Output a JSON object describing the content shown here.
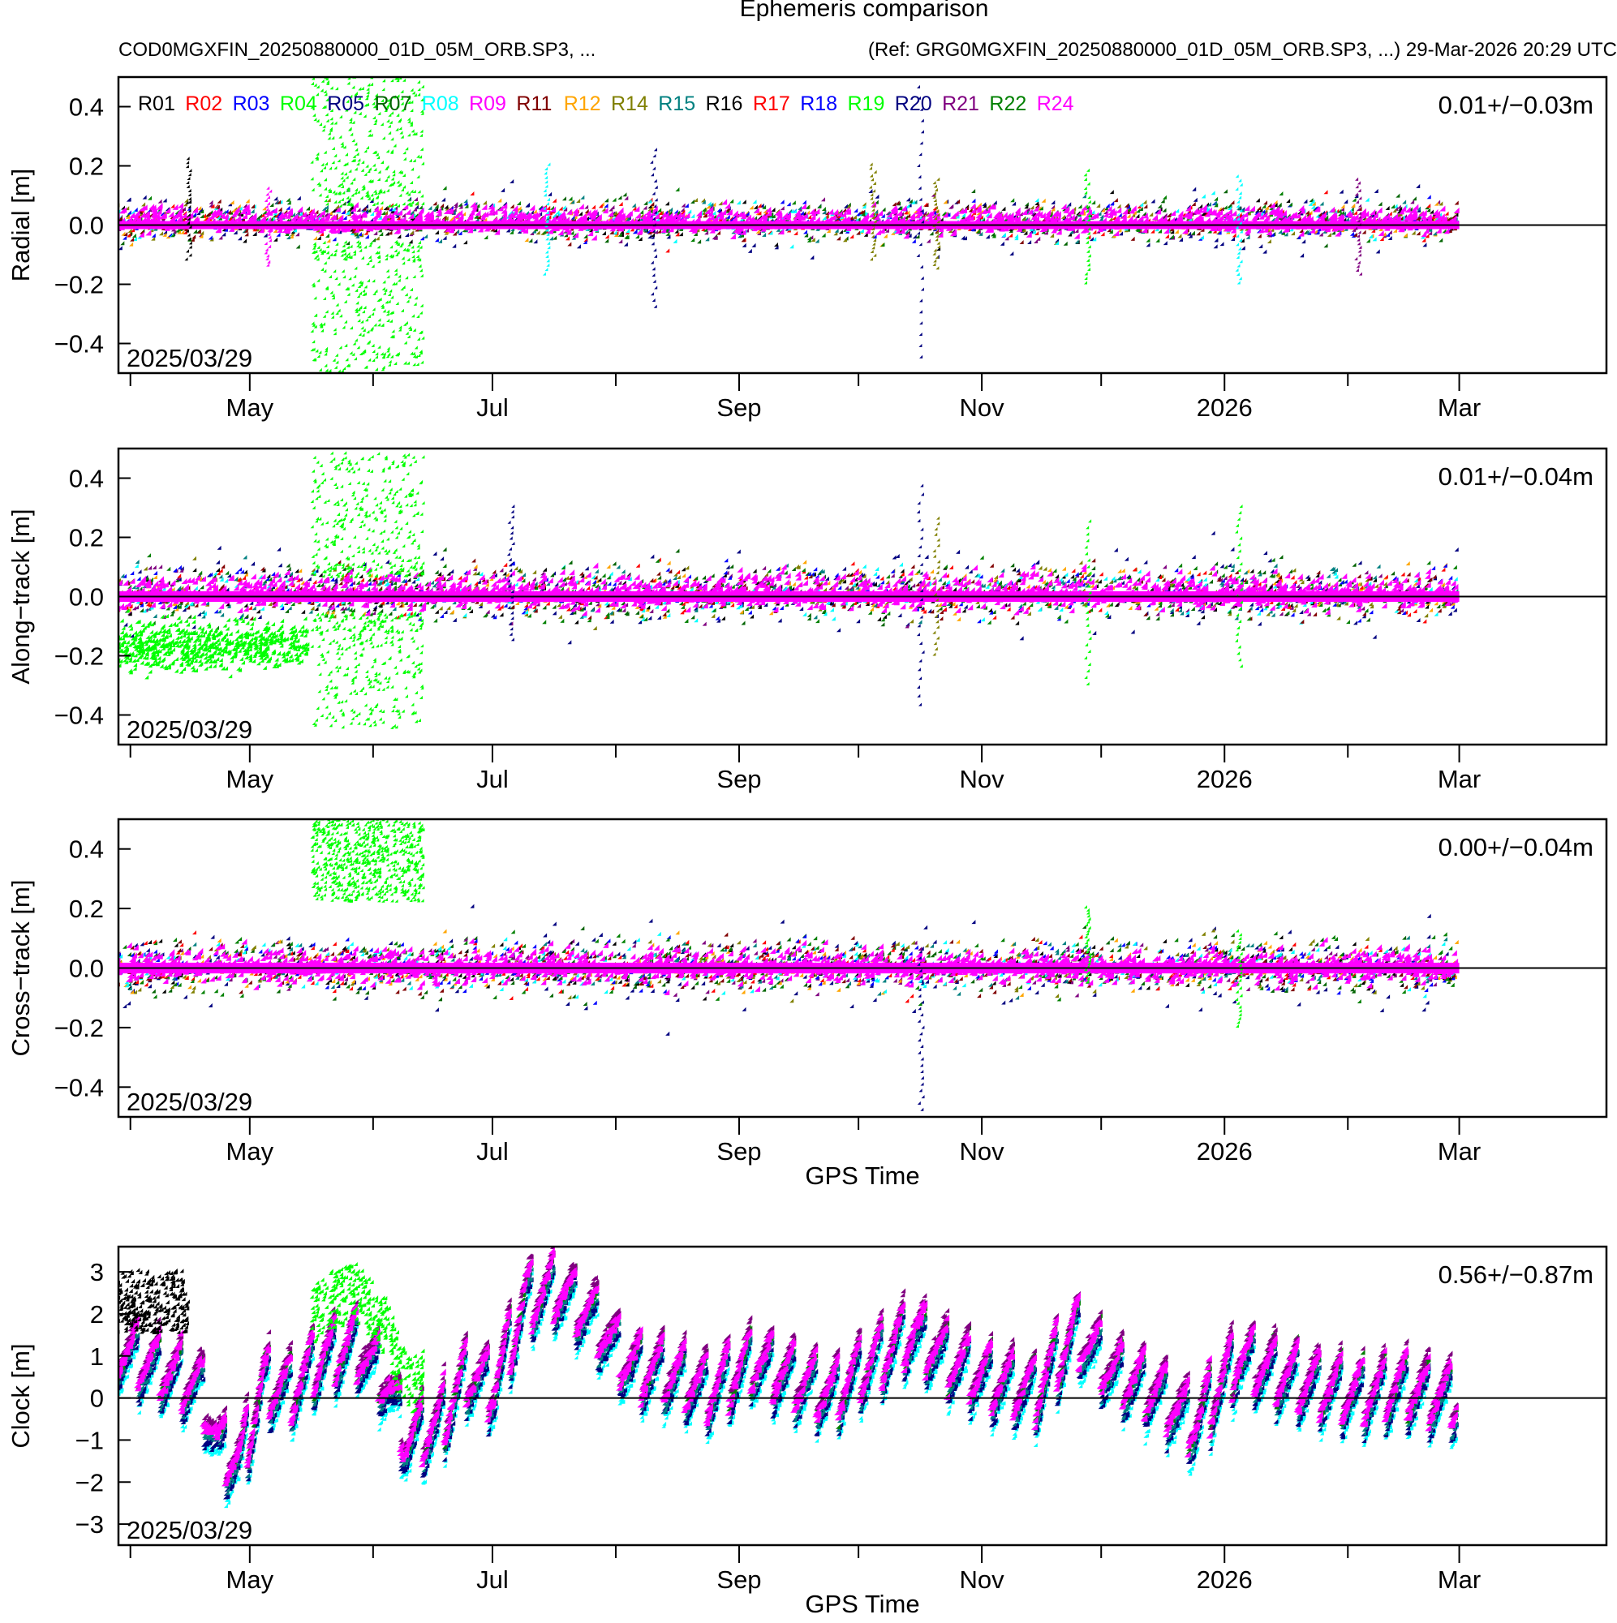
{
  "header": {
    "title": "Ephemeris comparison",
    "left": "COD0MGXFIN_20250880000_01D_05M_ORB.SP3, ...",
    "right": "(Ref: GRG0MGXFIN_20250880000_01D_05M_ORB.SP3, ...) 29-Mar-2026 20:29 UTC"
  },
  "chart_data": [
    {
      "type": "scatter",
      "panel": "radial",
      "ylabel": "Radial [m]",
      "xlabel": "",
      "ylim": [
        -0.5,
        0.5
      ],
      "yticks": [
        "0.4",
        "0.2",
        "0.0",
        "−0.2",
        "−0.4"
      ],
      "ytick_values": [
        0.4,
        0.2,
        0.0,
        -0.2,
        -0.4
      ],
      "stat": "0.01+/−0.03m",
      "start_date": "2025/03/29",
      "band": {
        "center": 0.01,
        "spread": 0.03
      },
      "spikes": [
        {
          "date": "2025-04-16",
          "min": -0.12,
          "max": 0.22,
          "sat": "R01"
        },
        {
          "date": "2025-05-06",
          "min": -0.14,
          "max": 0.12,
          "sat": "R09"
        },
        {
          "date": "2025-07-15",
          "min": -0.17,
          "max": 0.2,
          "sat": "R08"
        },
        {
          "date": "2025-08-11",
          "min": -0.28,
          "max": 0.25,
          "sat": "R20"
        },
        {
          "date": "2025-10-05",
          "min": -0.12,
          "max": 0.2,
          "sat": "R14"
        },
        {
          "date": "2025-10-17",
          "min": -0.45,
          "max": 0.5,
          "sat": "R20"
        },
        {
          "date": "2025-10-21",
          "min": -0.15,
          "max": 0.15,
          "sat": "R14"
        },
        {
          "date": "2025-11-28",
          "min": -0.2,
          "max": 0.18,
          "sat": "R19"
        },
        {
          "date": "2026-01-05",
          "min": -0.2,
          "max": 0.16,
          "sat": "R08"
        },
        {
          "date": "2026-02-04",
          "min": -0.17,
          "max": 0.15,
          "sat": "R21"
        }
      ],
      "outlier_block": {
        "sat": "R04",
        "from": "2025-05-17",
        "to": "2025-06-14",
        "min": -0.5,
        "max": 0.5
      }
    },
    {
      "type": "scatter",
      "panel": "along-track",
      "ylabel": "Along−track [m]",
      "xlabel": "",
      "ylim": [
        -0.5,
        0.5
      ],
      "yticks": [
        "0.4",
        "0.2",
        "0.0",
        "−0.2",
        "−0.4"
      ],
      "ytick_values": [
        0.4,
        0.2,
        0.0,
        -0.2,
        -0.4
      ],
      "stat": "0.01+/−0.04m",
      "start_date": "2025/03/29",
      "band": {
        "center": 0.01,
        "spread": 0.04
      },
      "spikes": [
        {
          "date": "2025-07-06",
          "min": -0.15,
          "max": 0.3,
          "sat": "R20"
        },
        {
          "date": "2025-10-17",
          "min": -0.37,
          "max": 0.37,
          "sat": "R20"
        },
        {
          "date": "2025-10-21",
          "min": -0.2,
          "max": 0.26,
          "sat": "R14"
        },
        {
          "date": "2025-11-28",
          "min": -0.3,
          "max": 0.25,
          "sat": "R19"
        },
        {
          "date": "2026-01-05",
          "min": -0.24,
          "max": 0.3,
          "sat": "R19"
        }
      ],
      "outlier_block": {
        "sat": "R04",
        "from": "2025-05-17",
        "to": "2025-06-14",
        "min": -0.45,
        "max": 0.48
      },
      "offset_block": {
        "sat": "R04",
        "from": "2025-03-29",
        "to": "2025-05-16",
        "min": -0.28,
        "max": -0.06
      }
    },
    {
      "type": "scatter",
      "panel": "cross-track",
      "ylabel": "Cross−track [m]",
      "xlabel": "GPS Time",
      "ylim": [
        -0.5,
        0.5
      ],
      "yticks": [
        "0.4",
        "0.2",
        "0.0",
        "−0.2",
        "−0.4"
      ],
      "ytick_values": [
        0.4,
        0.2,
        0.0,
        -0.2,
        -0.4
      ],
      "stat": "0.00+/−0.04m",
      "start_date": "2025/03/29",
      "band": {
        "center": 0.0,
        "spread": 0.04
      },
      "spikes": [
        {
          "date": "2025-10-17",
          "min": -0.48,
          "max": 0.05,
          "sat": "R20"
        },
        {
          "date": "2025-11-28",
          "min": -0.05,
          "max": 0.2,
          "sat": "R19"
        },
        {
          "date": "2026-01-05",
          "min": -0.2,
          "max": 0.12,
          "sat": "R19"
        }
      ],
      "outlier_block": {
        "sat": "R04",
        "from": "2025-05-17",
        "to": "2025-06-14",
        "min": 0.22,
        "max": 0.5
      }
    },
    {
      "type": "scatter",
      "panel": "clock",
      "ylabel": "Clock [m]",
      "xlabel": "GPS Time",
      "ylim": [
        -3.5,
        3.6
      ],
      "yticks": [
        "3",
        "2",
        "1",
        "0",
        "−1",
        "−2",
        "−3"
      ],
      "ytick_values": [
        3,
        2,
        1,
        0,
        -1,
        -2,
        -3
      ],
      "stat": "0.56+/−0.87m",
      "start_date": "2025/03/29",
      "trend": [
        [
          "2025-03-29",
          1.2
        ],
        [
          "2025-04-05",
          0.9
        ],
        [
          "2025-04-12",
          0.6
        ],
        [
          "2025-04-19",
          0.3
        ],
        [
          "2025-04-24",
          -1.2
        ],
        [
          "2025-04-29",
          -1.5
        ],
        [
          "2025-05-05",
          0.4
        ],
        [
          "2025-05-12",
          0.2
        ],
        [
          "2025-05-20",
          1.0
        ],
        [
          "2025-05-28",
          1.3
        ],
        [
          "2025-06-05",
          0.4
        ],
        [
          "2025-06-10",
          -1.0
        ],
        [
          "2025-06-18",
          -0.6
        ],
        [
          "2025-06-25",
          0.6
        ],
        [
          "2025-07-02",
          0.3
        ],
        [
          "2025-07-10",
          2.4
        ],
        [
          "2025-07-18",
          2.6
        ],
        [
          "2025-07-26",
          2.0
        ],
        [
          "2025-08-05",
          0.8
        ],
        [
          "2025-08-15",
          0.6
        ],
        [
          "2025-08-25",
          0.2
        ],
        [
          "2025-09-05",
          0.9
        ],
        [
          "2025-09-15",
          0.5
        ],
        [
          "2025-09-25",
          0.1
        ],
        [
          "2025-10-05",
          0.9
        ],
        [
          "2025-10-15",
          1.6
        ],
        [
          "2025-10-25",
          0.9
        ],
        [
          "2025-11-05",
          0.4
        ],
        [
          "2025-11-15",
          0.2
        ],
        [
          "2025-11-25",
          1.6
        ],
        [
          "2025-12-05",
          0.6
        ],
        [
          "2025-12-15",
          0.2
        ],
        [
          "2025-12-25",
          -0.6
        ],
        [
          "2026-01-05",
          1.0
        ],
        [
          "2026-01-15",
          0.6
        ],
        [
          "2026-01-25",
          0.3
        ],
        [
          "2026-02-05",
          0.1
        ],
        [
          "2026-02-15",
          0.3
        ],
        [
          "2026-02-28",
          0.0
        ]
      ]
    }
  ],
  "x_axis": {
    "ticks": [
      {
        "date": "2025-04-01",
        "label": ""
      },
      {
        "date": "2025-05-01",
        "label": "May"
      },
      {
        "date": "2025-06-01",
        "label": ""
      },
      {
        "date": "2025-07-01",
        "label": "Jul"
      },
      {
        "date": "2025-08-01",
        "label": ""
      },
      {
        "date": "2025-09-01",
        "label": "Sep"
      },
      {
        "date": "2025-10-01",
        "label": ""
      },
      {
        "date": "2025-11-01",
        "label": "Nov"
      },
      {
        "date": "2025-12-01",
        "label": ""
      },
      {
        "date": "2026-01-01",
        "label": "2026"
      },
      {
        "date": "2026-02-01",
        "label": ""
      },
      {
        "date": "2026-03-01",
        "label": "Mar"
      }
    ],
    "range": [
      "2025-03-29",
      "2026-04-07"
    ],
    "data_end": "2026-03-01",
    "label": "GPS Time"
  },
  "legend": [
    {
      "name": "R01",
      "color": "#000000"
    },
    {
      "name": "R02",
      "color": "#ff0000"
    },
    {
      "name": "R03",
      "color": "#0000ff"
    },
    {
      "name": "R04",
      "color": "#00ff00"
    },
    {
      "name": "R05",
      "color": "#000080"
    },
    {
      "name": "R07",
      "color": "#006400"
    },
    {
      "name": "R08",
      "color": "#00ffff"
    },
    {
      "name": "R09",
      "color": "#ff00ff"
    },
    {
      "name": "R11",
      "color": "#800000"
    },
    {
      "name": "R12",
      "color": "#ffa500"
    },
    {
      "name": "R14",
      "color": "#808000"
    },
    {
      "name": "R15",
      "color": "#008080"
    },
    {
      "name": "R16",
      "color": "#000000"
    },
    {
      "name": "R17",
      "color": "#ff0000"
    },
    {
      "name": "R18",
      "color": "#0000ff"
    },
    {
      "name": "R19",
      "color": "#00ff00"
    },
    {
      "name": "R20",
      "color": "#000080"
    },
    {
      "name": "R21",
      "color": "#800080"
    },
    {
      "name": "R22",
      "color": "#008000"
    },
    {
      "name": "R24",
      "color": "#ff00ff"
    }
  ]
}
